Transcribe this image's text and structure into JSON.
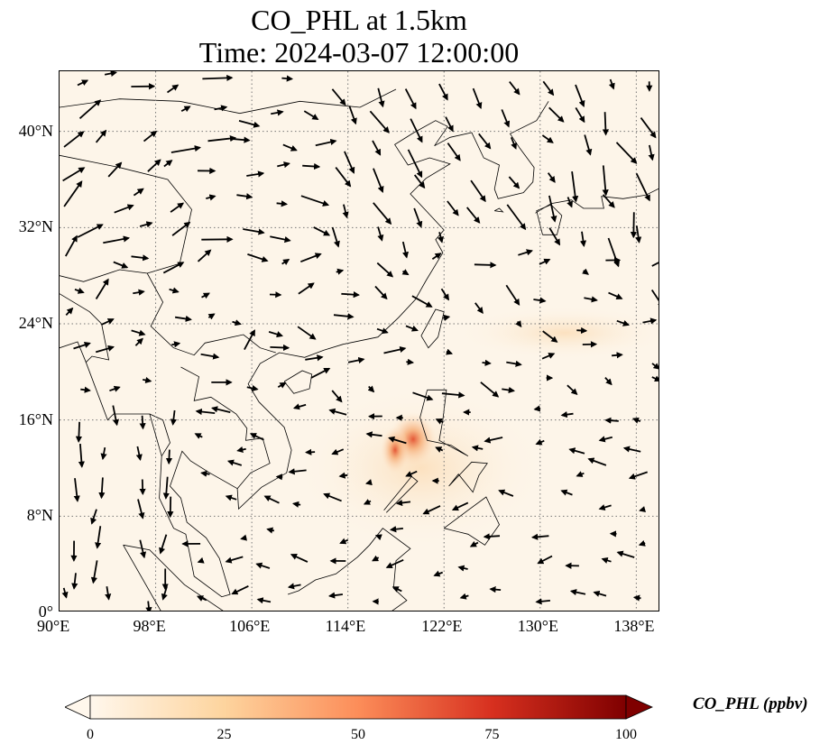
{
  "title": {
    "line1": "CO_PHL at 1.5km",
    "line2": "Time: 2024-03-07 12:00:00"
  },
  "map": {
    "projection": "PlateCarree",
    "lon_range": [
      90,
      140
    ],
    "lat_range": [
      0,
      45
    ],
    "gridlines": "dotted gray",
    "lon_ticks": [
      "90°E",
      "98°E",
      "106°E",
      "114°E",
      "122°E",
      "130°E",
      "138°E"
    ],
    "lat_ticks": [
      "0°",
      "8°N",
      "16°N",
      "24°N",
      "32°N",
      "40°N"
    ],
    "field_colormap": "OrRd",
    "field_peak": {
      "lon": 118.5,
      "lat": 14.5,
      "note_color": "#e3502e"
    },
    "wind_vectors": "black quiver arrows"
  },
  "colorbar": {
    "label": "CO_PHL (ppbv)",
    "ticks": [
      "0",
      "25",
      "50",
      "75",
      "100"
    ],
    "range": [
      0,
      100
    ],
    "extend": "both",
    "colors": [
      "#fff7ec",
      "#fdd49e",
      "#fc8d59",
      "#d7301f",
      "#7f0000"
    ]
  }
}
